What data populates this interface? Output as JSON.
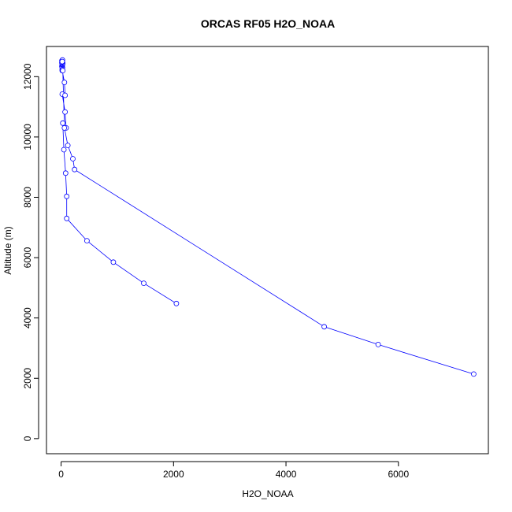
{
  "chart_data": {
    "type": "line",
    "title": "ORCAS RF05 H2O_NOAA",
    "xlabel": "H2O_NOAA",
    "ylabel": "Altitude (m)",
    "xlim": [
      -260,
      7600
    ],
    "ylim": [
      -500,
      13000
    ],
    "xticks": [
      0,
      2000,
      4000,
      6000
    ],
    "yticks": [
      0,
      2000,
      4000,
      6000,
      8000,
      10000,
      12000
    ],
    "series_color": "#0000ff",
    "point_style": "open-circle",
    "grid": false,
    "series": [
      {
        "x": [
          2050,
          1470,
          930,
          460,
          100,
          100,
          80,
          50,
          30,
          90,
          70,
          20,
          70,
          60,
          20,
          20,
          25,
          15,
          20,
          25,
          20,
          30,
          15,
          25,
          20,
          20,
          15,
          25,
          20,
          30,
          60,
          120,
          210,
          240,
          4680,
          5640,
          7340
        ],
        "y": [
          4480,
          5150,
          5850,
          6560,
          7300,
          8030,
          8800,
          9580,
          10460,
          10300,
          10830,
          11420,
          11380,
          11810,
          12200,
          12250,
          12300,
          12340,
          12380,
          12400,
          12420,
          12440,
          12460,
          12480,
          12500,
          12520,
          12530,
          12550,
          12500,
          12200,
          10300,
          9720,
          9280,
          8920,
          3710,
          3120,
          2140
        ]
      }
    ]
  }
}
